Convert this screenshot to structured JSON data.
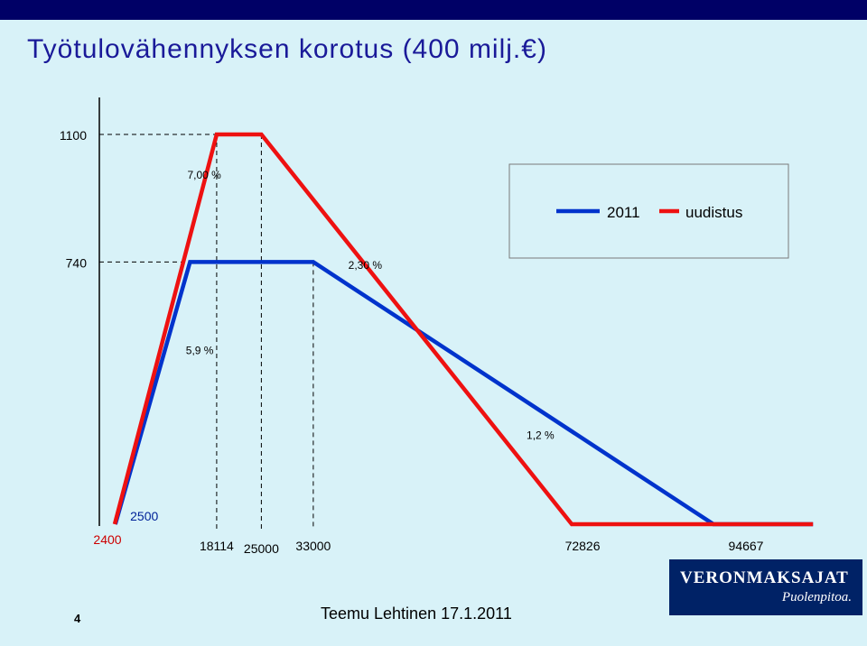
{
  "slide": {
    "title": "Työtulovähennyksen korotus (400 milj.€)",
    "footer": "Teemu Lehtinen  17.1.2011",
    "page_number": "4",
    "logo": {
      "line1": "VERONMAKSAJAT",
      "line2": "Puolenpitoa."
    }
  },
  "chart_data": {
    "type": "line",
    "title": "",
    "xlabel": "",
    "ylabel": "",
    "y_ticks": [
      "1100",
      "740"
    ],
    "x_labels": [
      {
        "text": "2400",
        "x": 2400,
        "color": "#cc0000",
        "row": "low"
      },
      {
        "text": "2500",
        "x": 2500,
        "color": "#002299",
        "row": "high"
      },
      {
        "text": "18114",
        "x": 18114,
        "color": "#000000",
        "row": "mid"
      },
      {
        "text": "25000",
        "x": 25000,
        "color": "#000000",
        "row": "mid"
      },
      {
        "text": "33000",
        "x": 33000,
        "color": "#000000",
        "row": "mid"
      },
      {
        "text": "72826",
        "x": 72826,
        "color": "#000000",
        "row": "mid"
      },
      {
        "text": "94667",
        "x": 94667,
        "color": "#000000",
        "row": "mid"
      }
    ],
    "series": [
      {
        "name": "2011",
        "color": "#0033cc",
        "points": [
          [
            2500,
            0
          ],
          [
            14000,
            740
          ],
          [
            33000,
            740
          ],
          [
            94667,
            0
          ],
          [
            110000,
            0
          ]
        ]
      },
      {
        "name": "uudistus",
        "color": "#ee1111",
        "points": [
          [
            2400,
            0
          ],
          [
            18114,
            1100
          ],
          [
            25000,
            1100
          ],
          [
            72826,
            0
          ],
          [
            110000,
            0
          ]
        ]
      }
    ],
    "annotations": [
      {
        "text": "7,00 %",
        "x": 16200,
        "y": 975
      },
      {
        "text": "2,30 %",
        "x": 41000,
        "y": 720
      },
      {
        "text": "5,9 %",
        "x": 15500,
        "y": 480
      },
      {
        "text": "1,2 %",
        "x": 68000,
        "y": 240
      }
    ],
    "legend": {
      "placement": "top-right"
    }
  }
}
